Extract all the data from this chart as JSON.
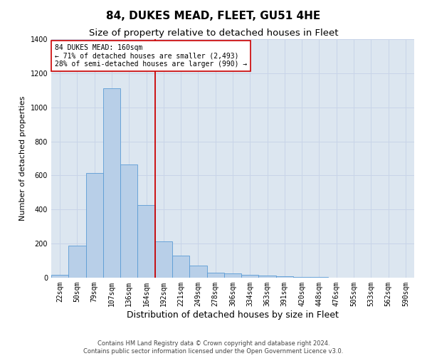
{
  "title": "84, DUKES MEAD, FLEET, GU51 4HE",
  "subtitle": "Size of property relative to detached houses in Fleet",
  "xlabel": "Distribution of detached houses by size in Fleet",
  "ylabel": "Number of detached properties",
  "footer_line1": "Contains HM Land Registry data © Crown copyright and database right 2024.",
  "footer_line2": "Contains public sector information licensed under the Open Government Licence v3.0.",
  "categories": [
    "22sqm",
    "50sqm",
    "79sqm",
    "107sqm",
    "136sqm",
    "164sqm",
    "192sqm",
    "221sqm",
    "249sqm",
    "278sqm",
    "306sqm",
    "334sqm",
    "363sqm",
    "391sqm",
    "420sqm",
    "448sqm",
    "476sqm",
    "505sqm",
    "533sqm",
    "562sqm",
    "590sqm"
  ],
  "values": [
    15,
    190,
    615,
    1110,
    665,
    425,
    215,
    130,
    70,
    30,
    25,
    18,
    12,
    8,
    5,
    3,
    2,
    2,
    2,
    1,
    0
  ],
  "bar_color": "#b8cfe8",
  "bar_edgecolor": "#5b9bd5",
  "bar_width": 1.0,
  "vline_x": 5.5,
  "vline_color": "#cc0000",
  "annotation_line1": "84 DUKES MEAD: 160sqm",
  "annotation_line2": "← 71% of detached houses are smaller (2,493)",
  "annotation_line3": "28% of semi-detached houses are larger (990) →",
  "annotation_box_edgecolor": "#cc0000",
  "annotation_box_facecolor": "#ffffff",
  "ylim": [
    0,
    1400
  ],
  "yticks": [
    0,
    200,
    400,
    600,
    800,
    1000,
    1200,
    1400
  ],
  "grid_color": "#c8d4e8",
  "axes_background": "#dce6f0",
  "fig_background": "#ffffff",
  "title_fontsize": 11,
  "subtitle_fontsize": 9.5,
  "xlabel_fontsize": 9,
  "ylabel_fontsize": 8,
  "tick_fontsize": 7,
  "annotation_fontsize": 7,
  "footer_fontsize": 6
}
